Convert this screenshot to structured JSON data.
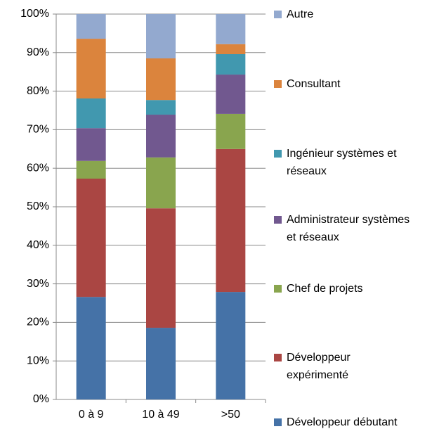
{
  "chart_data": {
    "type": "stacked_bar",
    "categories": [
      "0 à 9",
      "10 à 49",
      ">50"
    ],
    "series": [
      {
        "name": "Développeur débutant",
        "color": "#4572a7",
        "values": [
          26.6,
          18.6,
          27.9
        ]
      },
      {
        "name": "Développeur expérimenté",
        "color": "#aa4643",
        "values": [
          30.7,
          31.0,
          37.1
        ]
      },
      {
        "name": "Chef de projets",
        "color": "#89a54e",
        "values": [
          4.6,
          13.2,
          9.1
        ]
      },
      {
        "name": "Administrateur systèmes et réseaux",
        "color": "#71588f",
        "values": [
          8.5,
          11.1,
          10.2
        ]
      },
      {
        "name": "Ingénieur systèmes et réseaux",
        "color": "#4198af",
        "values": [
          7.7,
          3.8,
          5.3
        ]
      },
      {
        "name": "Consultant",
        "color": "#db843d",
        "values": [
          15.5,
          10.8,
          2.6
        ]
      },
      {
        "name": "Autre",
        "color": "#93a9cf",
        "values": [
          6.4,
          11.5,
          7.8
        ]
      }
    ],
    "ylim": [
      0,
      100
    ],
    "yticks": [
      {
        "value": 0,
        "label": "0%"
      },
      {
        "value": 10,
        "label": "10%"
      },
      {
        "value": 20,
        "label": "20%"
      },
      {
        "value": 30,
        "label": "30%"
      },
      {
        "value": 40,
        "label": "40%"
      },
      {
        "value": 50,
        "label": "50%"
      },
      {
        "value": 60,
        "label": "60%"
      },
      {
        "value": 70,
        "label": "70%"
      },
      {
        "value": 80,
        "label": "80%"
      },
      {
        "value": 90,
        "label": "90%"
      },
      {
        "value": 100,
        "label": "100%"
      }
    ],
    "grid": true,
    "legend": "right"
  }
}
